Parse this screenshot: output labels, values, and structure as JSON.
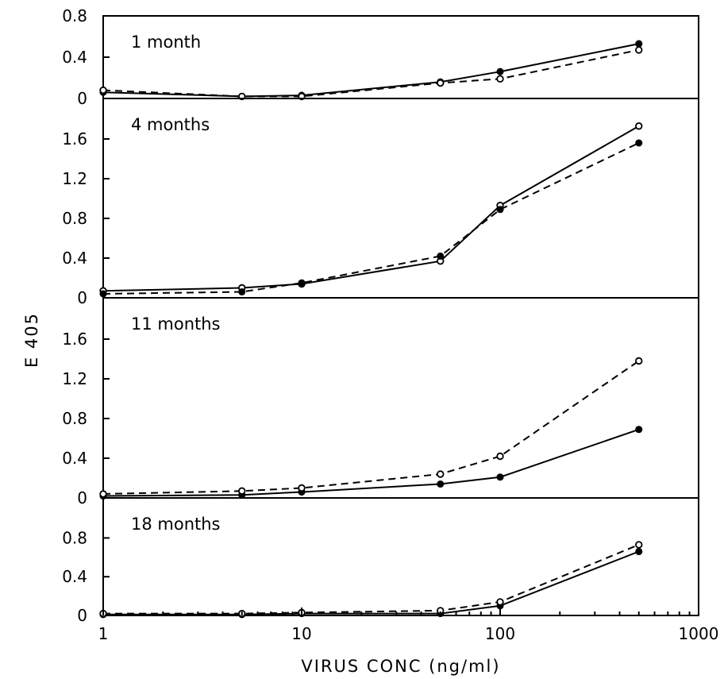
{
  "chart_data": {
    "type": "line",
    "xlabel": "VIRUS CONC (ng/ml)",
    "ylabel": "E 405",
    "xscale": "log",
    "xlim": [
      1,
      1000
    ],
    "x_ticks": [
      "1",
      "10",
      "100",
      "1000"
    ],
    "grid": false,
    "panels": [
      {
        "title": "1 month",
        "ylim": [
          0,
          0.8
        ],
        "y_ticks": [
          "0",
          "0.4",
          "0.8"
        ],
        "series": [
          {
            "style": "solid",
            "marker": "filled",
            "x": [
              1,
              5,
              10,
              50,
              100,
              500
            ],
            "y": [
              0.06,
              0.02,
              0.03,
              0.16,
              0.26,
              0.53
            ]
          },
          {
            "style": "dashed",
            "marker": "open",
            "x": [
              1,
              5,
              10,
              50,
              100,
              500
            ],
            "y": [
              0.08,
              0.02,
              0.02,
              0.15,
              0.19,
              0.47
            ]
          }
        ]
      },
      {
        "title": "4 months",
        "ylim": [
          0,
          2.0
        ],
        "y_ticks": [
          "0",
          "0.4",
          "0.8",
          "1.2",
          "1.6"
        ],
        "series": [
          {
            "style": "solid",
            "marker": "open",
            "x": [
              1,
              5,
              10,
              50,
              100,
              500
            ],
            "y": [
              0.07,
              0.1,
              0.14,
              0.37,
              0.93,
              1.73
            ]
          },
          {
            "style": "dashed",
            "marker": "filled",
            "x": [
              1,
              5,
              10,
              50,
              100,
              500
            ],
            "y": [
              0.04,
              0.06,
              0.15,
              0.42,
              0.89,
              1.56
            ]
          }
        ]
      },
      {
        "title": "11 months",
        "ylim": [
          0,
          2.0
        ],
        "y_ticks": [
          "0",
          "0.4",
          "0.8",
          "1.2",
          "1.6"
        ],
        "series": [
          {
            "style": "solid",
            "marker": "filled",
            "x": [
              1,
              5,
              10,
              50,
              100,
              500
            ],
            "y": [
              0.02,
              0.03,
              0.06,
              0.14,
              0.21,
              0.69
            ]
          },
          {
            "style": "dashed",
            "marker": "open",
            "x": [
              1,
              5,
              10,
              50,
              100,
              500
            ],
            "y": [
              0.04,
              0.07,
              0.1,
              0.24,
              0.42,
              1.38
            ]
          }
        ]
      },
      {
        "title": "18 months",
        "ylim": [
          0,
          1.2
        ],
        "y_ticks": [
          "0",
          "0.4",
          "0.8"
        ],
        "series": [
          {
            "style": "solid",
            "marker": "filled",
            "x": [
              1,
              5,
              10,
              50,
              100,
              500
            ],
            "y": [
              0.01,
              0.01,
              0.02,
              0.02,
              0.1,
              0.66
            ]
          },
          {
            "style": "dashed",
            "marker": "open",
            "x": [
              1,
              5,
              10,
              50,
              100,
              500
            ],
            "y": [
              0.02,
              0.02,
              0.03,
              0.05,
              0.14,
              0.73
            ]
          }
        ]
      }
    ]
  }
}
